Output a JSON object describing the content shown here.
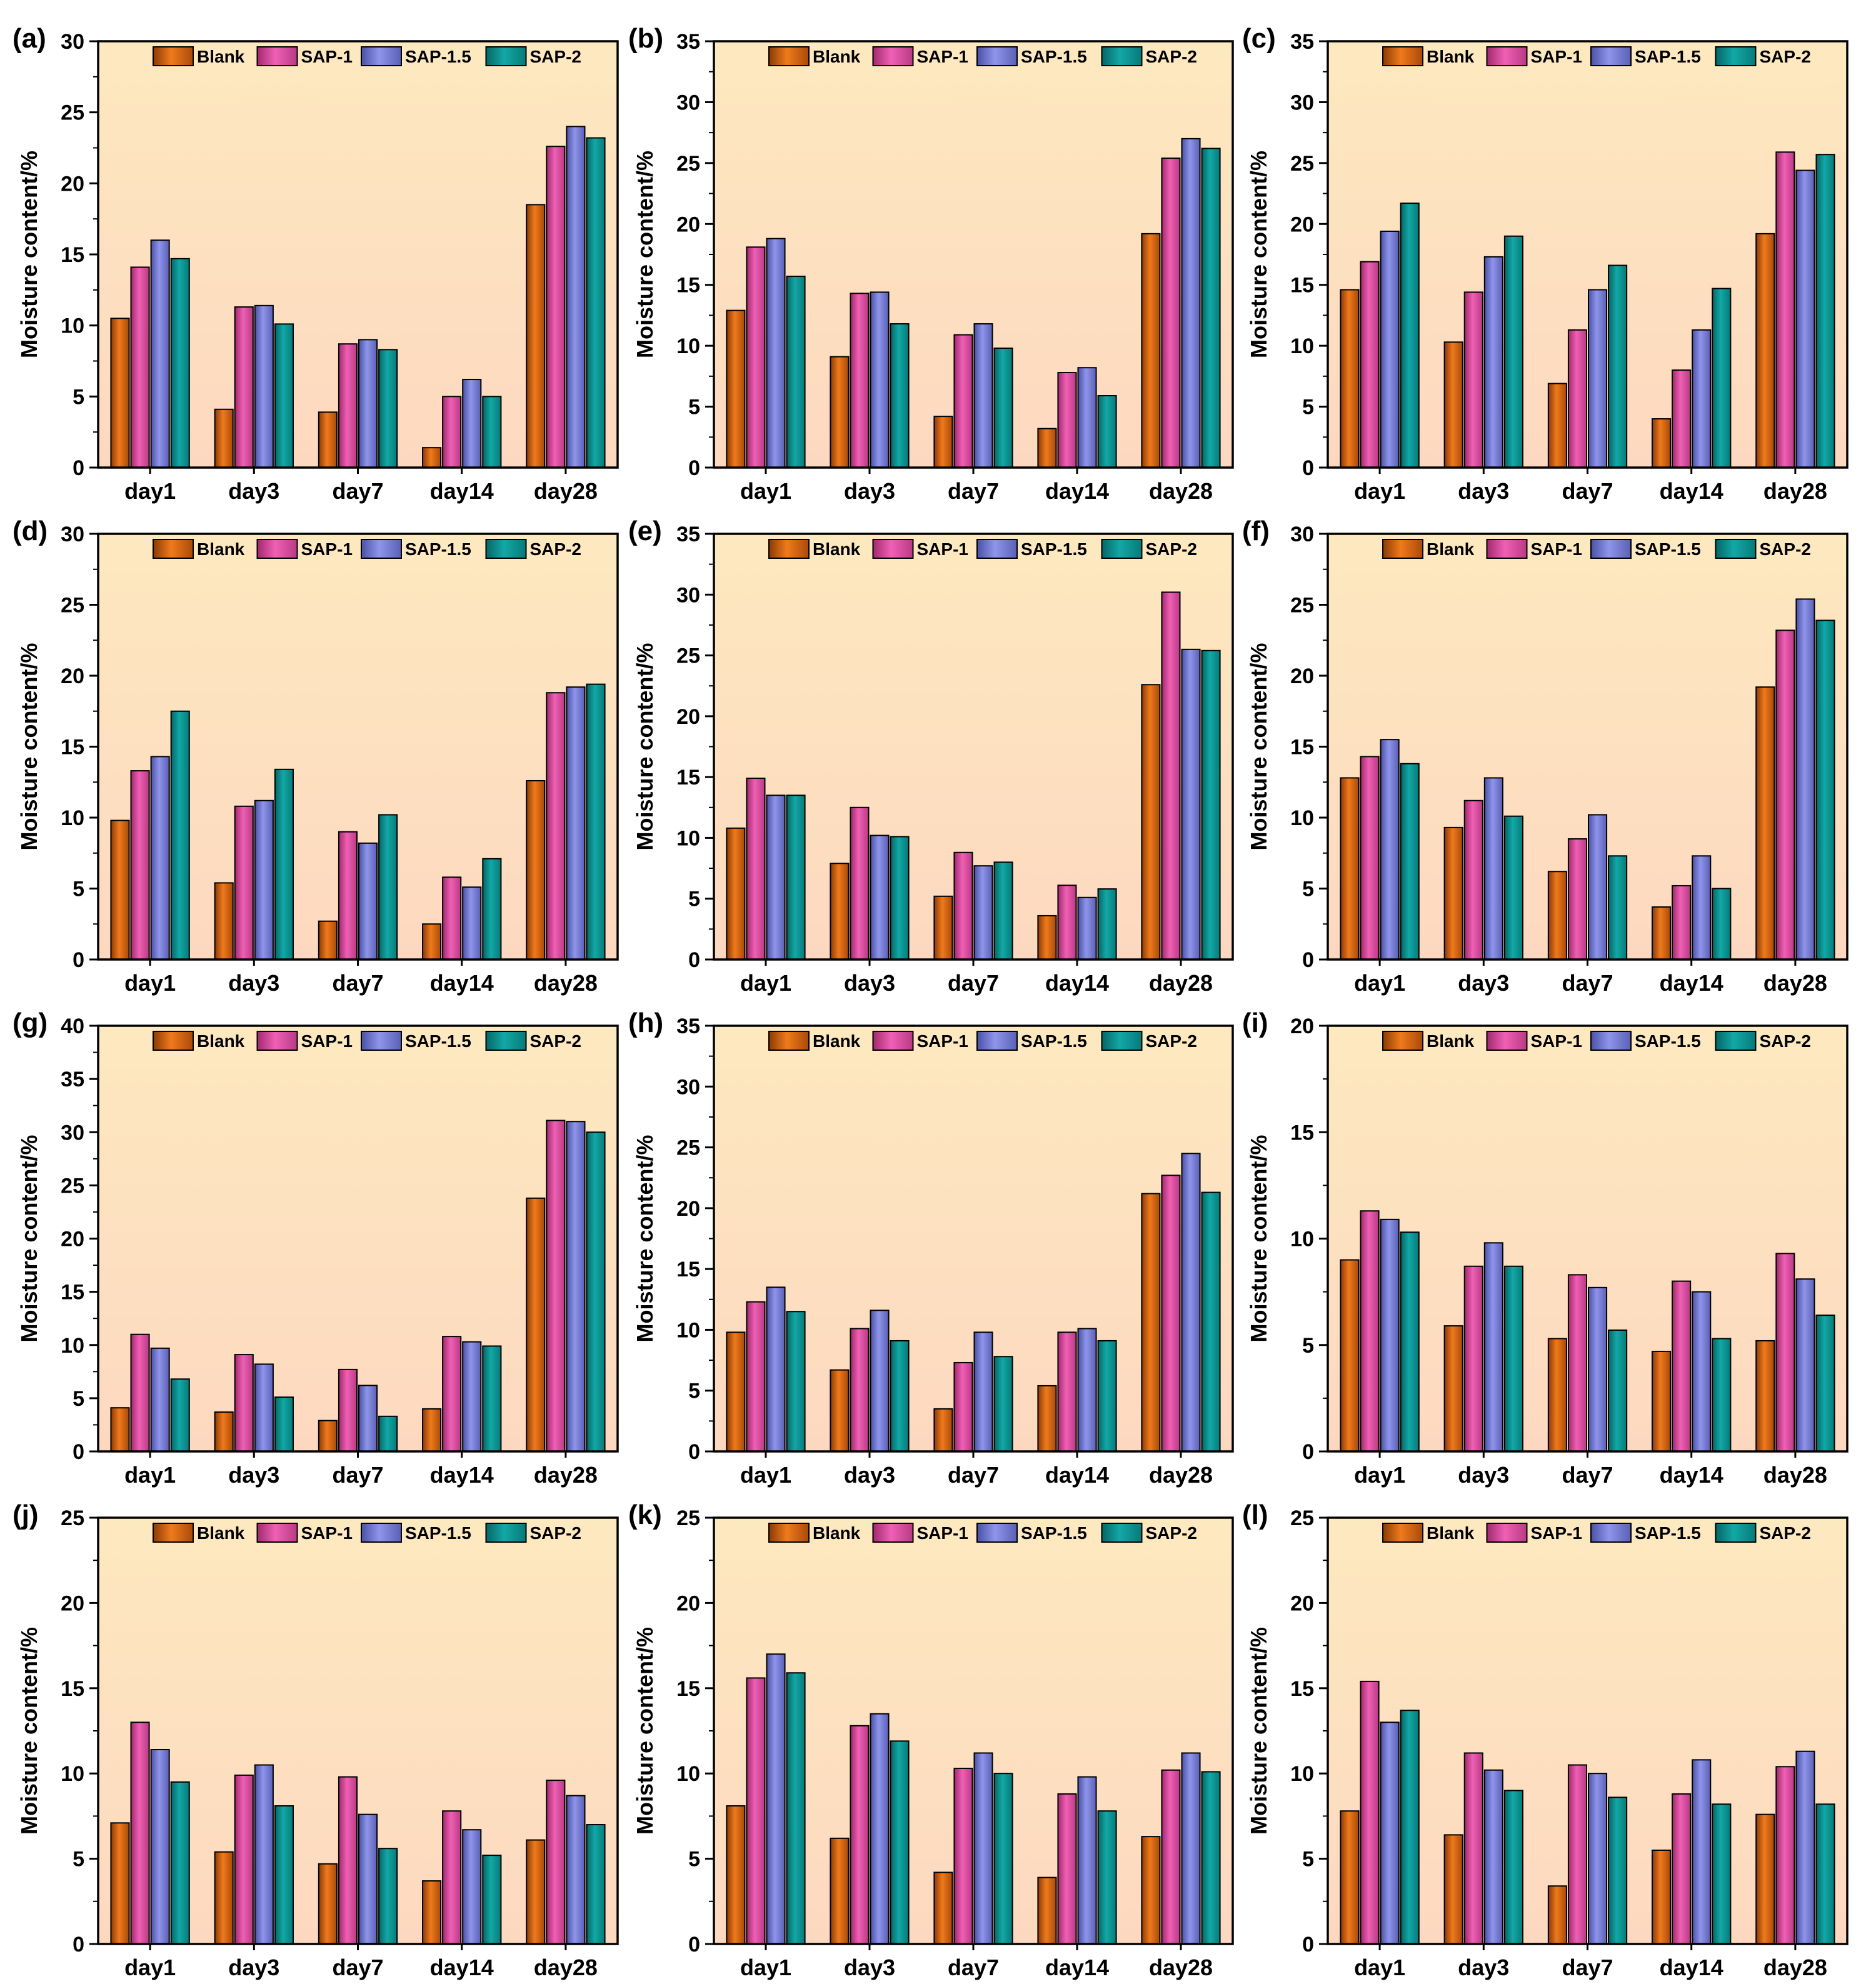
{
  "figure": {
    "legend_labels": [
      "Blank",
      "SAP-1",
      "SAP-1.5",
      "SAP-2"
    ],
    "ylabel": "Moisture content/%",
    "colors": {
      "Blank": "#f07a1c",
      "SAP-1": "#f060b4",
      "SAP-1.5": "#8e95ea",
      "SAP-2": "#12a8a6",
      "background_top": "#fde9bf",
      "background_bottom": "#fdd8c0",
      "axis": "#000000"
    }
  },
  "chart_data": [
    {
      "label": "(a)",
      "type": "bar",
      "categories": [
        "day1",
        "day3",
        "day7",
        "day14",
        "day28"
      ],
      "ylabel": "Moisture content/%",
      "ylim": [
        0,
        30
      ],
      "yticks": [
        0,
        5,
        10,
        15,
        20,
        25,
        30
      ],
      "series": [
        {
          "name": "Blank",
          "values": [
            10.5,
            4.1,
            3.9,
            1.4,
            18.5
          ]
        },
        {
          "name": "SAP-1",
          "values": [
            14.1,
            11.3,
            8.7,
            5.0,
            22.6
          ]
        },
        {
          "name": "SAP-1.5",
          "values": [
            16.0,
            11.4,
            9.0,
            6.2,
            24.0
          ]
        },
        {
          "name": "SAP-2",
          "values": [
            14.7,
            10.1,
            8.3,
            5.0,
            23.2
          ]
        }
      ]
    },
    {
      "label": "(b)",
      "type": "bar",
      "categories": [
        "day1",
        "day3",
        "day7",
        "day14",
        "day28"
      ],
      "ylabel": "Moisture content/%",
      "ylim": [
        0,
        35
      ],
      "yticks": [
        0,
        5,
        10,
        15,
        20,
        25,
        30,
        35
      ],
      "series": [
        {
          "name": "Blank",
          "values": [
            12.9,
            9.1,
            4.2,
            3.2,
            19.2
          ]
        },
        {
          "name": "SAP-1",
          "values": [
            18.1,
            14.3,
            10.9,
            7.8,
            25.4
          ]
        },
        {
          "name": "SAP-1.5",
          "values": [
            18.8,
            14.4,
            11.8,
            8.2,
            27.0
          ]
        },
        {
          "name": "SAP-2",
          "values": [
            15.7,
            11.8,
            9.8,
            5.9,
            26.2
          ]
        }
      ]
    },
    {
      "label": "(c)",
      "type": "bar",
      "categories": [
        "day1",
        "day3",
        "day7",
        "day14",
        "day28"
      ],
      "ylabel": "Moisture content/%",
      "ylim": [
        0,
        35
      ],
      "yticks": [
        0,
        5,
        10,
        15,
        20,
        25,
        30,
        35
      ],
      "series": [
        {
          "name": "Blank",
          "values": [
            14.6,
            10.3,
            6.9,
            4.0,
            19.2
          ]
        },
        {
          "name": "SAP-1",
          "values": [
            16.9,
            14.4,
            11.3,
            8.0,
            25.9
          ]
        },
        {
          "name": "SAP-1.5",
          "values": [
            19.4,
            17.3,
            14.6,
            11.3,
            24.4
          ]
        },
        {
          "name": "SAP-2",
          "values": [
            21.7,
            19.0,
            16.6,
            14.7,
            25.7
          ]
        }
      ]
    },
    {
      "label": "(d)",
      "type": "bar",
      "categories": [
        "day1",
        "day3",
        "day7",
        "day14",
        "day28"
      ],
      "ylabel": "Moisture content/%",
      "ylim": [
        0,
        30
      ],
      "yticks": [
        0,
        5,
        10,
        15,
        20,
        25,
        30
      ],
      "series": [
        {
          "name": "Blank",
          "values": [
            9.8,
            5.4,
            2.7,
            2.5,
            12.6
          ]
        },
        {
          "name": "SAP-1",
          "values": [
            13.3,
            10.8,
            9.0,
            5.8,
            18.8
          ]
        },
        {
          "name": "SAP-1.5",
          "values": [
            14.3,
            11.2,
            8.2,
            5.1,
            19.2
          ]
        },
        {
          "name": "SAP-2",
          "values": [
            17.5,
            13.4,
            10.2,
            7.1,
            19.4
          ]
        }
      ]
    },
    {
      "label": "(e)",
      "type": "bar",
      "categories": [
        "day1",
        "day3",
        "day7",
        "day14",
        "day28"
      ],
      "ylabel": "Moisture content/%",
      "ylim": [
        0,
        35
      ],
      "yticks": [
        0,
        5,
        10,
        15,
        20,
        25,
        30,
        35
      ],
      "series": [
        {
          "name": "Blank",
          "values": [
            10.8,
            7.9,
            5.2,
            3.6,
            22.6
          ]
        },
        {
          "name": "SAP-1",
          "values": [
            14.9,
            12.5,
            8.8,
            6.1,
            30.2
          ]
        },
        {
          "name": "SAP-1.5",
          "values": [
            13.5,
            10.2,
            7.7,
            5.1,
            25.5
          ]
        },
        {
          "name": "SAP-2",
          "values": [
            13.5,
            10.1,
            8.0,
            5.8,
            25.4
          ]
        }
      ]
    },
    {
      "label": "(f)",
      "type": "bar",
      "categories": [
        "day1",
        "day3",
        "day7",
        "day14",
        "day28"
      ],
      "ylabel": "Moisture content/%",
      "ylim": [
        0,
        30
      ],
      "yticks": [
        0,
        5,
        10,
        15,
        20,
        25,
        30
      ],
      "series": [
        {
          "name": "Blank",
          "values": [
            12.8,
            9.3,
            6.2,
            3.7,
            19.2
          ]
        },
        {
          "name": "SAP-1",
          "values": [
            14.3,
            11.2,
            8.5,
            5.2,
            23.2
          ]
        },
        {
          "name": "SAP-1.5",
          "values": [
            15.5,
            12.8,
            10.2,
            7.3,
            25.4
          ]
        },
        {
          "name": "SAP-2",
          "values": [
            13.8,
            10.1,
            7.3,
            5.0,
            23.9
          ]
        }
      ]
    },
    {
      "label": "(g)",
      "type": "bar",
      "categories": [
        "day1",
        "day3",
        "day7",
        "day14",
        "day28"
      ],
      "ylabel": "Moisture content/%",
      "ylim": [
        0,
        40
      ],
      "yticks": [
        0,
        5,
        10,
        15,
        20,
        25,
        30,
        35,
        40
      ],
      "series": [
        {
          "name": "Blank",
          "values": [
            4.1,
            3.7,
            2.9,
            4.0,
            23.8
          ]
        },
        {
          "name": "SAP-1",
          "values": [
            11.0,
            9.1,
            7.7,
            10.8,
            31.1
          ]
        },
        {
          "name": "SAP-1.5",
          "values": [
            9.7,
            8.2,
            6.2,
            10.3,
            31.0
          ]
        },
        {
          "name": "SAP-2",
          "values": [
            6.8,
            5.1,
            3.3,
            9.9,
            30.0
          ]
        }
      ]
    },
    {
      "label": "(h)",
      "type": "bar",
      "categories": [
        "day1",
        "day3",
        "day7",
        "day14",
        "day28"
      ],
      "ylabel": "Moisture content/%",
      "ylim": [
        0,
        35
      ],
      "yticks": [
        0,
        5,
        10,
        15,
        20,
        25,
        30,
        35
      ],
      "series": [
        {
          "name": "Blank",
          "values": [
            9.8,
            6.7,
            3.5,
            5.4,
            21.2
          ]
        },
        {
          "name": "SAP-1",
          "values": [
            12.3,
            10.1,
            7.3,
            9.8,
            22.7
          ]
        },
        {
          "name": "SAP-1.5",
          "values": [
            13.5,
            11.6,
            9.8,
            10.1,
            24.5
          ]
        },
        {
          "name": "SAP-2",
          "values": [
            11.5,
            9.1,
            7.8,
            9.1,
            21.3
          ]
        }
      ]
    },
    {
      "label": "(i)",
      "type": "bar",
      "categories": [
        "day1",
        "day3",
        "day7",
        "day14",
        "day28"
      ],
      "ylabel": "Moisture content/%",
      "ylim": [
        0,
        20
      ],
      "yticks": [
        0,
        5,
        10,
        15,
        20
      ],
      "series": [
        {
          "name": "Blank",
          "values": [
            9.0,
            5.9,
            5.3,
            4.7,
            5.2
          ]
        },
        {
          "name": "SAP-1",
          "values": [
            11.3,
            8.7,
            8.3,
            8.0,
            9.3
          ]
        },
        {
          "name": "SAP-1.5",
          "values": [
            10.9,
            9.8,
            7.7,
            7.5,
            8.1
          ]
        },
        {
          "name": "SAP-2",
          "values": [
            10.3,
            8.7,
            5.7,
            5.3,
            6.4
          ]
        }
      ]
    },
    {
      "label": "(j)",
      "type": "bar",
      "categories": [
        "day1",
        "day3",
        "day7",
        "day14",
        "day28"
      ],
      "ylabel": "Moisture content/%",
      "ylim": [
        0,
        25
      ],
      "yticks": [
        0,
        5,
        10,
        15,
        20,
        25
      ],
      "series": [
        {
          "name": "Blank",
          "values": [
            7.1,
            5.4,
            4.7,
            3.7,
            6.1
          ]
        },
        {
          "name": "SAP-1",
          "values": [
            13.0,
            9.9,
            9.8,
            7.8,
            9.6
          ]
        },
        {
          "name": "SAP-1.5",
          "values": [
            11.4,
            10.5,
            7.6,
            6.7,
            8.7
          ]
        },
        {
          "name": "SAP-2",
          "values": [
            9.5,
            8.1,
            5.6,
            5.2,
            7.0
          ]
        }
      ]
    },
    {
      "label": "(k)",
      "type": "bar",
      "categories": [
        "day1",
        "day3",
        "day7",
        "day14",
        "day28"
      ],
      "ylabel": "Moisture content/%",
      "ylim": [
        0,
        25
      ],
      "yticks": [
        0,
        5,
        10,
        15,
        20,
        25
      ],
      "series": [
        {
          "name": "Blank",
          "values": [
            8.1,
            6.2,
            4.2,
            3.9,
            6.3
          ]
        },
        {
          "name": "SAP-1",
          "values": [
            15.6,
            12.8,
            10.3,
            8.8,
            10.2
          ]
        },
        {
          "name": "SAP-1.5",
          "values": [
            17.0,
            13.5,
            11.2,
            9.8,
            11.2
          ]
        },
        {
          "name": "SAP-2",
          "values": [
            15.9,
            11.9,
            10.0,
            7.8,
            10.1
          ]
        }
      ]
    },
    {
      "label": "(l)",
      "type": "bar",
      "categories": [
        "day1",
        "day3",
        "day7",
        "day14",
        "day28"
      ],
      "ylabel": "Moisture content/%",
      "ylim": [
        0,
        25
      ],
      "yticks": [
        0,
        5,
        10,
        15,
        20,
        25
      ],
      "series": [
        {
          "name": "Blank",
          "values": [
            7.8,
            6.4,
            3.4,
            5.5,
            7.6
          ]
        },
        {
          "name": "SAP-1",
          "values": [
            15.4,
            11.2,
            10.5,
            8.8,
            10.4
          ]
        },
        {
          "name": "SAP-1.5",
          "values": [
            13.0,
            10.2,
            10.0,
            10.8,
            11.3
          ]
        },
        {
          "name": "SAP-2",
          "values": [
            13.7,
            9.0,
            8.6,
            8.2,
            8.2
          ]
        }
      ]
    }
  ]
}
